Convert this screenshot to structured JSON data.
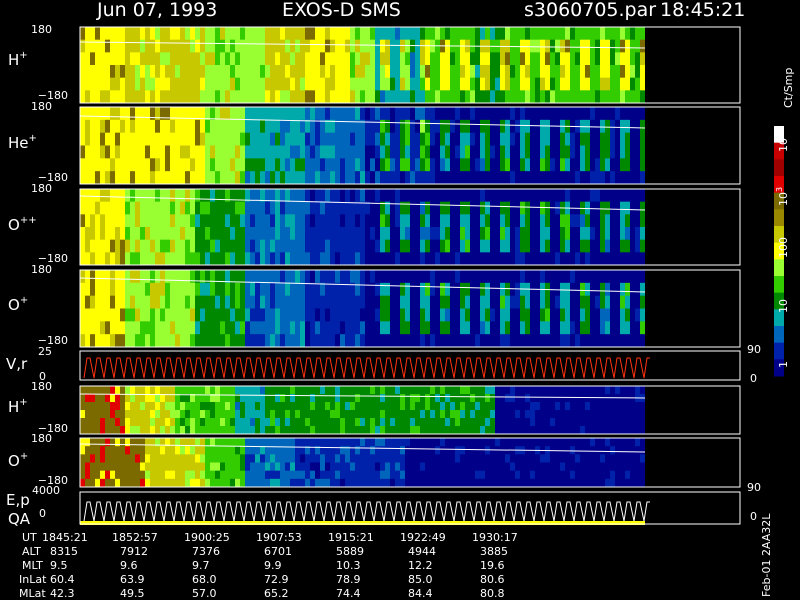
{
  "header": {
    "date": "Jun 07, 1993",
    "mission": "EXOS-D SMS",
    "file": "s3060705.par",
    "time": "18:45:21"
  },
  "panels": [
    {
      "label": "H",
      "sup": "+",
      "ymax": "180",
      "ymin": "−180"
    },
    {
      "label": "He",
      "sup": "+",
      "ymax": "180",
      "ymin": "−180"
    },
    {
      "label": "O",
      "sup": "++",
      "ymax": "180",
      "ymin": "−180"
    },
    {
      "label": "O",
      "sup": "+",
      "ymax": "180",
      "ymin": "−180"
    },
    {
      "label": "V,r",
      "sup": "",
      "ymax": "25",
      "ymin": "0",
      "rmax": "90",
      "rmin": "0"
    },
    {
      "label": "H",
      "sup": "+",
      "ymax": "180",
      "ymin": "−180"
    },
    {
      "label": "O",
      "sup": "+",
      "ymax": "180",
      "ymin": "−180"
    },
    {
      "label": "E,p",
      "label2": "QA",
      "ymax": "4000",
      "ymin": "0",
      "rmax": "90",
      "rmin": "0"
    }
  ],
  "colorbar": {
    "title": "Ct/Smp",
    "ticks": [
      {
        "base": "10",
        "exp": "4"
      },
      {
        "base": "10",
        "exp": "3"
      },
      {
        "base": "100",
        "exp": ""
      },
      {
        "base": "10",
        "exp": ""
      },
      {
        "base": "1",
        "exp": ""
      }
    ],
    "colors": [
      "#ffffff",
      "#c80000",
      "#a00000",
      "#e00000",
      "#7a6a00",
      "#998800",
      "#c8c800",
      "#ffff00",
      "#99ff33",
      "#33cc00",
      "#008800",
      "#00aaaa",
      "#0066bb",
      "#0022aa",
      "#000088"
    ]
  },
  "footer": {
    "row_labels": [
      "UT",
      "ALT",
      "MLT",
      "InLat",
      "MLat"
    ],
    "columns": [
      [
        "1845:21",
        "8315",
        "9.5",
        "60.4",
        "42.3"
      ],
      [
        "1852:57",
        "7912",
        "9.6",
        "63.9",
        "49.5"
      ],
      [
        "1900:25",
        "7376",
        "9.7",
        "68.0",
        "57.0"
      ],
      [
        "1907:53",
        "6701",
        "9.9",
        "72.9",
        "65.2"
      ],
      [
        "1915:21",
        "5889",
        "10.3",
        "78.9",
        "74.4"
      ],
      [
        "1922:49",
        "4944",
        "12.2",
        "85.0",
        "84.4"
      ],
      [
        "1930:17",
        "3885",
        "19.6",
        "80.6",
        "80.8"
      ]
    ],
    "side_text": "Feb-01 2AA32L"
  },
  "chart_data": {
    "type": "heatmap",
    "title": "Jun 07, 1993 EXOS-D SMS",
    "x_tick_labels": [
      "1845:21",
      "1852:57",
      "1900:25",
      "1907:53",
      "1915:21",
      "1922:49",
      "1930:17"
    ],
    "panels": [
      "H+",
      "He+",
      "O++",
      "O+",
      "V,r",
      "H+",
      "O+",
      "E,p QA"
    ],
    "colorbar_label": "Ct/Smp",
    "colorbar_ticks": [
      "1",
      "10",
      "100",
      "10^3",
      "10^4"
    ],
    "colorscale": "log"
  }
}
